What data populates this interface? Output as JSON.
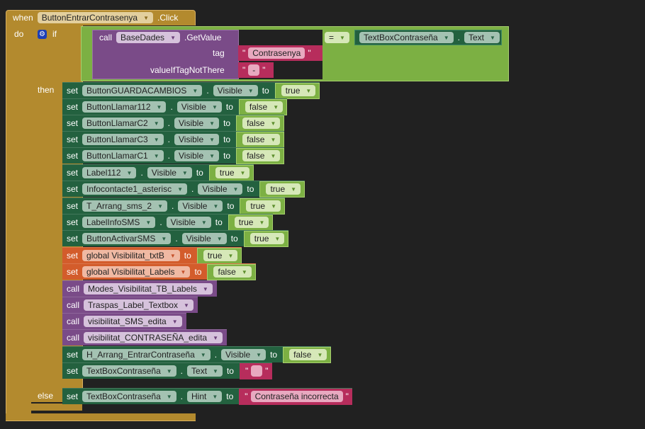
{
  "event": {
    "when": "when",
    "component": "ButtonEntrarContrasenya",
    "event": ".Click",
    "do": "do"
  },
  "if_block": {
    "if": "if",
    "then": "then",
    "else": "else"
  },
  "condition": {
    "call": "call",
    "component": "BaseDades",
    "method": ".GetValue",
    "tag_label": "tag",
    "tag_value": "Contrasenya",
    "default_label": "valueIfTagNotThere",
    "default_value": "-",
    "operator": "=",
    "right_component": "TextBoxContraseña",
    "right_property": "Text"
  },
  "then_blocks": [
    {
      "kind": "set",
      "component": "ButtonGUARDACAMBIOS",
      "property": "Visible",
      "value": "true",
      "value_type": "logic"
    },
    {
      "kind": "set",
      "component": "ButtonLlamar112",
      "property": "Visible",
      "value": "false",
      "value_type": "logic"
    },
    {
      "kind": "set",
      "component": "ButtonLlamarC2",
      "property": "Visible",
      "value": "false",
      "value_type": "logic"
    },
    {
      "kind": "set",
      "component": "ButtonLlamarC3",
      "property": "Visible",
      "value": "false",
      "value_type": "logic"
    },
    {
      "kind": "set",
      "component": "ButtonLlamarC1",
      "property": "Visible",
      "value": "false",
      "value_type": "logic"
    },
    {
      "kind": "set",
      "component": "Label112",
      "property": "Visible",
      "value": "true",
      "value_type": "logic"
    },
    {
      "kind": "set",
      "component": "Infocontacte1_asterisc",
      "property": "Visible",
      "value": "true",
      "value_type": "logic"
    },
    {
      "kind": "set",
      "component": "T_Arrang_sms_2",
      "property": "Visible",
      "value": "true",
      "value_type": "logic"
    },
    {
      "kind": "set",
      "component": "LabelInfoSMS",
      "property": "Visible",
      "value": "true",
      "value_type": "logic"
    },
    {
      "kind": "set",
      "component": "ButtonActivarSMS",
      "property": "Visible",
      "value": "true",
      "value_type": "logic"
    },
    {
      "kind": "setvar",
      "variable": "global Visibilitat_txtB",
      "value": "true",
      "value_type": "logic"
    },
    {
      "kind": "setvar",
      "variable": "global Visibilitat_Labels",
      "value": "false",
      "value_type": "logic"
    },
    {
      "kind": "call",
      "procedure": "Modes_Visibilitat_TB_Labels"
    },
    {
      "kind": "call",
      "procedure": "Traspas_Label_Textbox"
    },
    {
      "kind": "call",
      "procedure": "visibilitat_SMS_edita"
    },
    {
      "kind": "call",
      "procedure": "visibilitat_CONTRASEÑA_edita"
    },
    {
      "kind": "set",
      "component": "H_Arrang_EntrarContraseña",
      "property": "Visible",
      "value": "false",
      "value_type": "logic"
    },
    {
      "kind": "set",
      "component": "TextBoxContraseña",
      "property": "Text",
      "value": "",
      "value_type": "text"
    }
  ],
  "else_blocks": [
    {
      "kind": "set",
      "component": "TextBoxContraseña",
      "property": "Hint",
      "value": "Contraseña incorrecta",
      "value_type": "text"
    }
  ],
  "keywords": {
    "set": "set",
    "to": "to",
    "call": "call",
    "dot": "."
  },
  "colors": {
    "event": "#b38a2e",
    "logic": "#7cb043",
    "procedure": "#7a4b88",
    "text": "#b72d5c",
    "setter": "#23613f",
    "variable": "#d35c2b",
    "background": "#212121"
  }
}
